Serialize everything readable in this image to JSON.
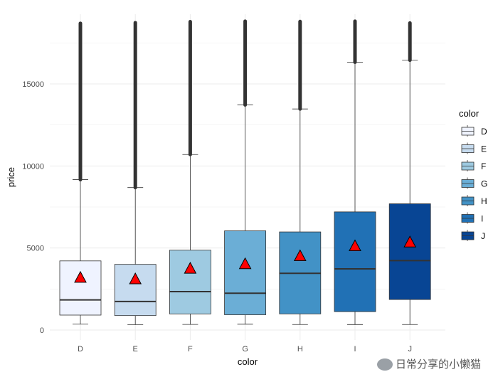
{
  "chart_data": {
    "type": "boxplot",
    "xlabel": "color",
    "ylabel": "price",
    "categories": [
      "D",
      "E",
      "F",
      "G",
      "H",
      "I",
      "J"
    ],
    "ylim": [
      0,
      19500
    ],
    "yticks": [
      0,
      5000,
      10000,
      15000
    ],
    "ytick_labels": [
      "0",
      "5000",
      "10000",
      "15000"
    ],
    "grid": true,
    "boxes": [
      {
        "cat": "D",
        "min": 357,
        "q1": 911,
        "median": 1838,
        "q3": 4213.5,
        "whisker_high": 9167,
        "max": 18693,
        "mean": 3169.95
      },
      {
        "cat": "E",
        "min": 326,
        "q1": 882,
        "median": 1739,
        "q3": 4003,
        "whisker_high": 8684,
        "max": 18731,
        "mean": 3076.75
      },
      {
        "cat": "F",
        "min": 342,
        "q1": 982,
        "median": 2343.5,
        "q3": 4868,
        "whisker_high": 10697,
        "max": 18791,
        "mean": 3724.89
      },
      {
        "cat": "G",
        "min": 354,
        "q1": 931,
        "median": 2242,
        "q3": 6048,
        "whisker_high": 13723,
        "max": 18818,
        "mean": 3999.14
      },
      {
        "cat": "H",
        "min": 337,
        "q1": 984,
        "median": 3460,
        "q3": 5980,
        "whisker_high": 13474,
        "max": 18803,
        "mean": 4486.67
      },
      {
        "cat": "I",
        "min": 334,
        "q1": 1120.5,
        "median": 3730,
        "q3": 7201.75,
        "whisker_high": 16323,
        "max": 18823,
        "mean": 5091.87
      },
      {
        "cat": "J",
        "min": 335,
        "q1": 1860.5,
        "median": 4234,
        "q3": 7695,
        "whisker_high": 16446,
        "max": 18710,
        "mean": 5323.82
      }
    ],
    "fill_colors": [
      "#EFF3FF",
      "#C6DBEF",
      "#9ECAE1",
      "#6BAED6",
      "#4292C6",
      "#2171B5",
      "#084594"
    ],
    "mean_marker": {
      "shape": "triangle",
      "color": "#FF0000"
    },
    "legend": {
      "title": "color",
      "placement": "right",
      "entries": [
        "D",
        "E",
        "F",
        "G",
        "H",
        "I",
        "J"
      ]
    }
  },
  "watermark": "日常分享的小懒猫"
}
